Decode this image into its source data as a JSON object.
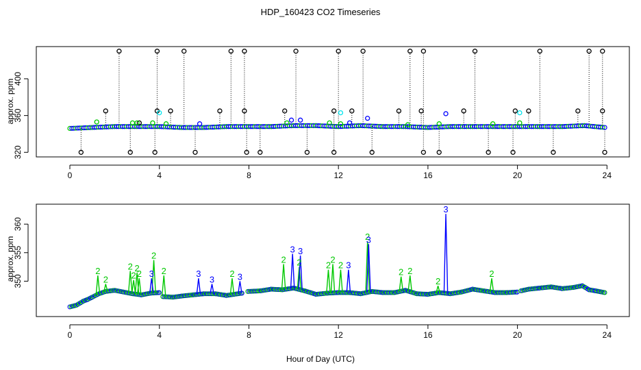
{
  "chart_data": [
    {
      "type": "scatter",
      "title": "HDP_160423  CO2 Timeseries",
      "xlabel": "",
      "ylabel": "approx. ppm",
      "xlim": [
        -1.5,
        25
      ],
      "ylim": [
        315,
        435
      ],
      "xticks": [
        0,
        4,
        8,
        12,
        16,
        20,
        24
      ],
      "xtick_labels": [
        "0",
        "4",
        "8",
        "12",
        "16",
        "20",
        "24"
      ],
      "yticks": [
        320,
        360,
        400
      ],
      "ytick_labels": [
        "320",
        "360",
        "400"
      ],
      "colors": {
        "black": "#000000",
        "green": "#00c800",
        "blue": "#0000ff",
        "cyan": "#00e5ee"
      },
      "baseline": {
        "x": [
          0.0,
          1.0,
          2.0,
          3.0,
          4.0,
          5.0,
          6.0,
          7.0,
          8.0,
          9.0,
          10.0,
          11.0,
          12.0,
          13.0,
          14.0,
          15.0,
          16.0,
          17.0,
          18.0,
          19.0,
          20.0,
          21.0,
          22.0,
          23.0,
          23.9
        ],
        "y": [
          346,
          347,
          348,
          348,
          348,
          347,
          347,
          348,
          348,
          348,
          349,
          349,
          348,
          349,
          348,
          348,
          347,
          348,
          348,
          348,
          348,
          348,
          348,
          349,
          347
        ]
      },
      "spikes": {
        "x": [
          0.5,
          1.6,
          2.2,
          2.7,
          3.1,
          3.8,
          3.9,
          3.9,
          4.5,
          5.1,
          5.6,
          6.7,
          7.2,
          7.8,
          7.8,
          7.9,
          8.5,
          9.6,
          10.1,
          10.6,
          11.8,
          11.8,
          12.0,
          12.6,
          13.1,
          13.5,
          14.7,
          15.2,
          15.7,
          15.8,
          15.8,
          16.5,
          17.6,
          18.1,
          18.7,
          19.8,
          19.9,
          20.5,
          21.0,
          21.6,
          22.7,
          23.2,
          23.8,
          23.8,
          23.9
        ],
        "y": [
          320,
          365,
          430,
          320,
          352,
          320,
          365,
          430,
          365,
          430,
          320,
          365,
          430,
          430,
          365,
          320,
          320,
          365,
          430,
          320,
          320,
          365,
          430,
          365,
          430,
          320,
          365,
          430,
          365,
          430,
          320,
          320,
          365,
          430,
          320,
          320,
          365,
          365,
          430,
          320,
          365,
          430,
          430,
          365,
          320
        ]
      },
      "green_points": {
        "x": [
          1.2,
          2.8,
          3.0,
          3.7,
          4.3,
          9.7,
          11.6,
          12.1,
          15.1,
          16.5,
          18.9,
          20.1
        ],
        "y": [
          353,
          352,
          352,
          352,
          351,
          352,
          352,
          351,
          350,
          351,
          351,
          352
        ]
      },
      "blue_points": {
        "x": [
          5.8,
          9.9,
          10.3,
          12.5,
          13.3,
          16.8
        ],
        "y": [
          351,
          355,
          355,
          352,
          357,
          362
        ]
      },
      "cyan_points": {
        "x": [
          4.0,
          12.1,
          20.1
        ],
        "y": [
          363,
          363,
          363
        ]
      }
    },
    {
      "type": "line",
      "title": "",
      "xlabel": "Hour of Day (UTC)",
      "ylabel": "approx. ppm",
      "xlim": [
        -1.5,
        25
      ],
      "ylim": [
        343.8,
        363.5
      ],
      "xticks": [
        0,
        4,
        8,
        12,
        16,
        20,
        24
      ],
      "xtick_labels": [
        "0",
        "4",
        "8",
        "12",
        "16",
        "20",
        "24"
      ],
      "yticks": [
        350,
        355,
        360
      ],
      "ytick_labels": [
        "350",
        "355",
        "360"
      ],
      "colors": {
        "series_2": "#00c800",
        "series_3": "#0000ff"
      },
      "gaps": [
        [
          4.0,
          4.15
        ],
        [
          7.7,
          7.95
        ],
        [
          20.0,
          20.15
        ]
      ],
      "baseline": {
        "x": [
          0.0,
          0.3,
          0.6,
          0.8,
          1.0,
          1.3,
          1.6,
          2.0,
          2.4,
          2.8,
          3.2,
          3.6,
          3.99,
          4.15,
          4.6,
          5.0,
          5.5,
          6.0,
          6.5,
          7.0,
          7.69,
          7.95,
          8.5,
          9.0,
          9.5,
          10.0,
          10.5,
          11.0,
          11.5,
          12.0,
          12.5,
          13.0,
          13.5,
          14.0,
          14.5,
          15.0,
          15.5,
          16.0,
          16.5,
          17.0,
          17.5,
          18.0,
          18.5,
          19.0,
          19.5,
          19.99,
          20.15,
          20.5,
          21.0,
          21.5,
          22.0,
          22.5,
          22.9,
          23.2,
          23.5,
          23.9
        ],
        "y": [
          345.5,
          345.8,
          346.5,
          346.8,
          347.2,
          347.8,
          348.2,
          348.4,
          348.1,
          347.8,
          347.6,
          347.9,
          348.0,
          347.3,
          347.2,
          347.4,
          347.6,
          347.8,
          347.8,
          347.5,
          347.9,
          348.2,
          348.3,
          348.6,
          348.5,
          348.8,
          348.3,
          347.7,
          347.9,
          348.0,
          348.0,
          347.8,
          348.2,
          348.0,
          348.0,
          348.4,
          347.8,
          347.7,
          348.0,
          347.8,
          348.1,
          348.6,
          348.3,
          348.0,
          348.0,
          348.1,
          348.3,
          348.6,
          348.8,
          349.0,
          348.7,
          348.9,
          349.2,
          348.5,
          348.3,
          348.0
        ]
      },
      "series": [
        {
          "name": "2",
          "x": [
            1.25,
            1.6,
            2.7,
            2.85,
            3.0,
            3.1,
            3.75,
            4.2,
            7.25,
            9.55,
            10.25,
            11.55,
            11.75,
            12.1,
            13.3,
            14.8,
            15.2,
            16.45,
            18.85
          ],
          "y": [
            351.0,
            349.5,
            351.8,
            350.2,
            351.5,
            350.5,
            353.7,
            351.0,
            350.5,
            353.0,
            352.5,
            352.0,
            353.0,
            352.0,
            357.0,
            350.8,
            351.0,
            349.2,
            350.5
          ]
        },
        {
          "name": "3",
          "x": [
            3.65,
            5.75,
            6.35,
            7.6,
            9.95,
            10.3,
            12.45,
            13.35,
            16.8
          ],
          "y": [
            350.5,
            350.5,
            349.5,
            350.0,
            354.8,
            354.5,
            352.0,
            356.5,
            361.8
          ]
        }
      ]
    }
  ]
}
